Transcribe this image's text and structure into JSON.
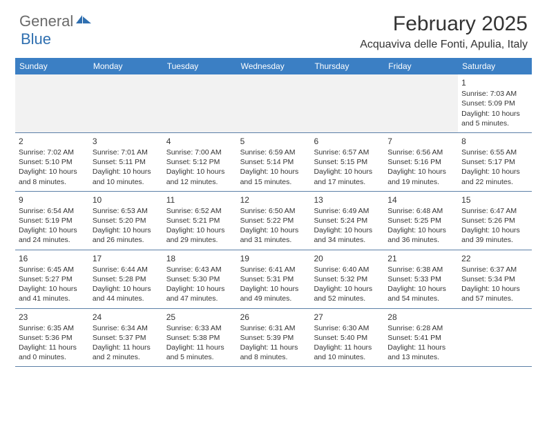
{
  "brand": {
    "text1": "General",
    "text2": "Blue"
  },
  "title": "February 2025",
  "location": "Acquaviva delle Fonti, Apulia, Italy",
  "colors": {
    "header_bg": "#3b7fc4",
    "header_text": "#ffffff",
    "divider": "#5a7ea6",
    "empty_bg": "#f2f2f2",
    "text": "#333333",
    "brand_gray": "#6a6a6a",
    "brand_blue": "#2f6fb0"
  },
  "weekdays": [
    "Sunday",
    "Monday",
    "Tuesday",
    "Wednesday",
    "Thursday",
    "Friday",
    "Saturday"
  ],
  "weeks": [
    [
      null,
      null,
      null,
      null,
      null,
      null,
      {
        "n": "1",
        "sunrise": "Sunrise: 7:03 AM",
        "sunset": "Sunset: 5:09 PM",
        "daylight": "Daylight: 10 hours and 5 minutes."
      }
    ],
    [
      {
        "n": "2",
        "sunrise": "Sunrise: 7:02 AM",
        "sunset": "Sunset: 5:10 PM",
        "daylight": "Daylight: 10 hours and 8 minutes."
      },
      {
        "n": "3",
        "sunrise": "Sunrise: 7:01 AM",
        "sunset": "Sunset: 5:11 PM",
        "daylight": "Daylight: 10 hours and 10 minutes."
      },
      {
        "n": "4",
        "sunrise": "Sunrise: 7:00 AM",
        "sunset": "Sunset: 5:12 PM",
        "daylight": "Daylight: 10 hours and 12 minutes."
      },
      {
        "n": "5",
        "sunrise": "Sunrise: 6:59 AM",
        "sunset": "Sunset: 5:14 PM",
        "daylight": "Daylight: 10 hours and 15 minutes."
      },
      {
        "n": "6",
        "sunrise": "Sunrise: 6:57 AM",
        "sunset": "Sunset: 5:15 PM",
        "daylight": "Daylight: 10 hours and 17 minutes."
      },
      {
        "n": "7",
        "sunrise": "Sunrise: 6:56 AM",
        "sunset": "Sunset: 5:16 PM",
        "daylight": "Daylight: 10 hours and 19 minutes."
      },
      {
        "n": "8",
        "sunrise": "Sunrise: 6:55 AM",
        "sunset": "Sunset: 5:17 PM",
        "daylight": "Daylight: 10 hours and 22 minutes."
      }
    ],
    [
      {
        "n": "9",
        "sunrise": "Sunrise: 6:54 AM",
        "sunset": "Sunset: 5:19 PM",
        "daylight": "Daylight: 10 hours and 24 minutes."
      },
      {
        "n": "10",
        "sunrise": "Sunrise: 6:53 AM",
        "sunset": "Sunset: 5:20 PM",
        "daylight": "Daylight: 10 hours and 26 minutes."
      },
      {
        "n": "11",
        "sunrise": "Sunrise: 6:52 AM",
        "sunset": "Sunset: 5:21 PM",
        "daylight": "Daylight: 10 hours and 29 minutes."
      },
      {
        "n": "12",
        "sunrise": "Sunrise: 6:50 AM",
        "sunset": "Sunset: 5:22 PM",
        "daylight": "Daylight: 10 hours and 31 minutes."
      },
      {
        "n": "13",
        "sunrise": "Sunrise: 6:49 AM",
        "sunset": "Sunset: 5:24 PM",
        "daylight": "Daylight: 10 hours and 34 minutes."
      },
      {
        "n": "14",
        "sunrise": "Sunrise: 6:48 AM",
        "sunset": "Sunset: 5:25 PM",
        "daylight": "Daylight: 10 hours and 36 minutes."
      },
      {
        "n": "15",
        "sunrise": "Sunrise: 6:47 AM",
        "sunset": "Sunset: 5:26 PM",
        "daylight": "Daylight: 10 hours and 39 minutes."
      }
    ],
    [
      {
        "n": "16",
        "sunrise": "Sunrise: 6:45 AM",
        "sunset": "Sunset: 5:27 PM",
        "daylight": "Daylight: 10 hours and 41 minutes."
      },
      {
        "n": "17",
        "sunrise": "Sunrise: 6:44 AM",
        "sunset": "Sunset: 5:28 PM",
        "daylight": "Daylight: 10 hours and 44 minutes."
      },
      {
        "n": "18",
        "sunrise": "Sunrise: 6:43 AM",
        "sunset": "Sunset: 5:30 PM",
        "daylight": "Daylight: 10 hours and 47 minutes."
      },
      {
        "n": "19",
        "sunrise": "Sunrise: 6:41 AM",
        "sunset": "Sunset: 5:31 PM",
        "daylight": "Daylight: 10 hours and 49 minutes."
      },
      {
        "n": "20",
        "sunrise": "Sunrise: 6:40 AM",
        "sunset": "Sunset: 5:32 PM",
        "daylight": "Daylight: 10 hours and 52 minutes."
      },
      {
        "n": "21",
        "sunrise": "Sunrise: 6:38 AM",
        "sunset": "Sunset: 5:33 PM",
        "daylight": "Daylight: 10 hours and 54 minutes."
      },
      {
        "n": "22",
        "sunrise": "Sunrise: 6:37 AM",
        "sunset": "Sunset: 5:34 PM",
        "daylight": "Daylight: 10 hours and 57 minutes."
      }
    ],
    [
      {
        "n": "23",
        "sunrise": "Sunrise: 6:35 AM",
        "sunset": "Sunset: 5:36 PM",
        "daylight": "Daylight: 11 hours and 0 minutes."
      },
      {
        "n": "24",
        "sunrise": "Sunrise: 6:34 AM",
        "sunset": "Sunset: 5:37 PM",
        "daylight": "Daylight: 11 hours and 2 minutes."
      },
      {
        "n": "25",
        "sunrise": "Sunrise: 6:33 AM",
        "sunset": "Sunset: 5:38 PM",
        "daylight": "Daylight: 11 hours and 5 minutes."
      },
      {
        "n": "26",
        "sunrise": "Sunrise: 6:31 AM",
        "sunset": "Sunset: 5:39 PM",
        "daylight": "Daylight: 11 hours and 8 minutes."
      },
      {
        "n": "27",
        "sunrise": "Sunrise: 6:30 AM",
        "sunset": "Sunset: 5:40 PM",
        "daylight": "Daylight: 11 hours and 10 minutes."
      },
      {
        "n": "28",
        "sunrise": "Sunrise: 6:28 AM",
        "sunset": "Sunset: 5:41 PM",
        "daylight": "Daylight: 11 hours and 13 minutes."
      },
      null
    ]
  ]
}
